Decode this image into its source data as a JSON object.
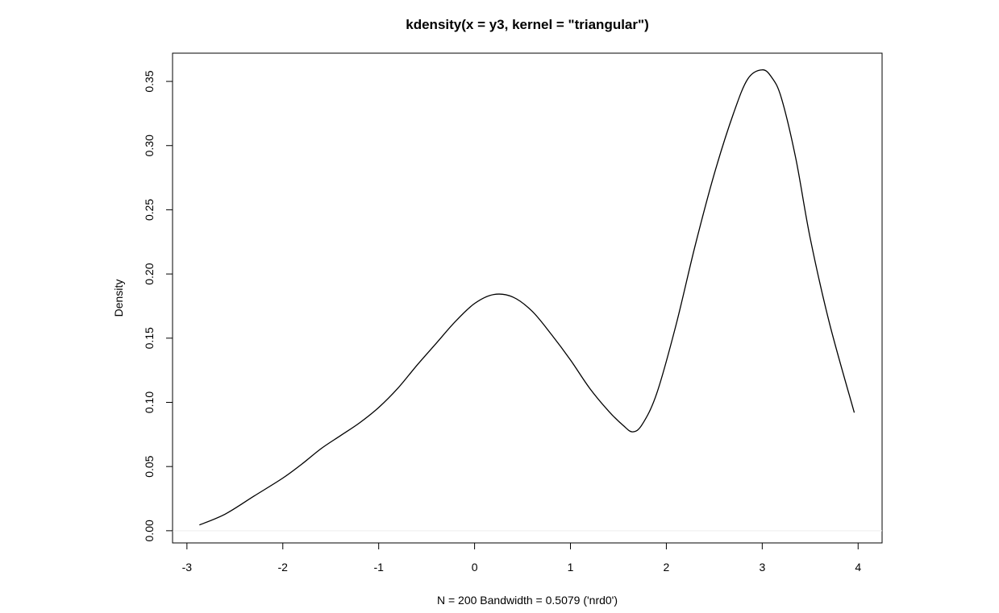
{
  "chart_data": {
    "type": "line",
    "title": "kdensity(x = y3, kernel = \"triangular\")",
    "xlabel": "N = 200   Bandwidth = 0.5079 ('nrd0')",
    "ylabel": "Density",
    "xlim": [
      -3.15,
      4.25
    ],
    "ylim": [
      -0.0095,
      0.372
    ],
    "x_ticks": [
      -3,
      -2,
      -1,
      0,
      1,
      2,
      3,
      4
    ],
    "x_tick_labels": [
      "-3",
      "-2",
      "-1",
      "0",
      "1",
      "2",
      "3",
      "4"
    ],
    "y_ticks": [
      0,
      0.05,
      0.1,
      0.15,
      0.2,
      0.25,
      0.3,
      0.35
    ],
    "y_tick_labels": [
      "0.00",
      "0.05",
      "0.10",
      "0.15",
      "0.20",
      "0.25",
      "0.30",
      "0.35"
    ],
    "grid": false,
    "baseline": {
      "y": 0,
      "color": "#eeeeee"
    },
    "series": [
      {
        "color": "#000000",
        "x": [
          -2.87,
          -2.6,
          -2.3,
          -2.0,
          -1.8,
          -1.6,
          -1.4,
          -1.2,
          -1.0,
          -0.8,
          -0.6,
          -0.4,
          -0.2,
          0.0,
          0.2,
          0.4,
          0.6,
          0.8,
          1.0,
          1.2,
          1.4,
          1.55,
          1.65,
          1.75,
          1.9,
          2.1,
          2.3,
          2.5,
          2.7,
          2.85,
          3.0,
          3.1,
          3.2,
          3.35,
          3.5,
          3.7,
          3.96
        ],
        "y": [
          0.0045,
          0.013,
          0.027,
          0.041,
          0.052,
          0.064,
          0.074,
          0.084,
          0.096,
          0.111,
          0.129,
          0.146,
          0.163,
          0.177,
          0.184,
          0.182,
          0.171,
          0.153,
          0.133,
          0.111,
          0.093,
          0.082,
          0.077,
          0.083,
          0.107,
          0.16,
          0.222,
          0.278,
          0.325,
          0.352,
          0.359,
          0.353,
          0.337,
          0.29,
          0.228,
          0.162,
          0.092
        ]
      }
    ]
  }
}
